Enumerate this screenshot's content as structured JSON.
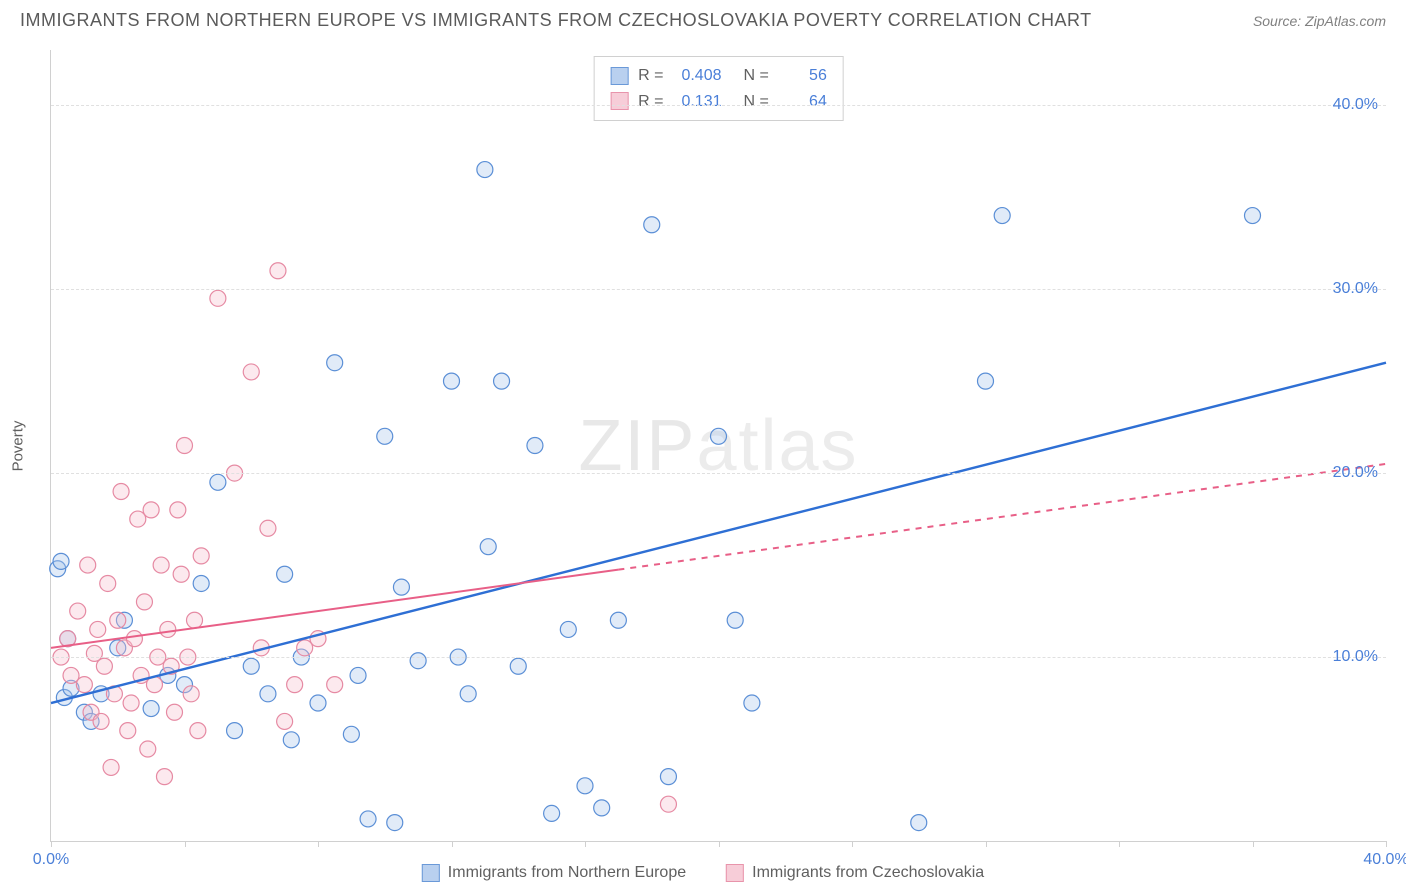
{
  "title": "IMMIGRANTS FROM NORTHERN EUROPE VS IMMIGRANTS FROM CZECHOSLOVAKIA POVERTY CORRELATION CHART",
  "source": "Source: ZipAtlas.com",
  "watermark_a": "ZIP",
  "watermark_b": "atlas",
  "y_axis_label": "Poverty",
  "chart": {
    "type": "scatter",
    "xlim": [
      0,
      40
    ],
    "ylim": [
      0,
      43
    ],
    "xtick_positions": [
      0,
      4,
      8,
      12,
      16,
      20,
      24,
      28,
      32,
      36,
      40
    ],
    "xtick_labels": {
      "0": "0.0%",
      "40": "40.0%"
    },
    "ytick_values": [
      10,
      20,
      30,
      40
    ],
    "ytick_labels": [
      "10.0%",
      "20.0%",
      "30.0%",
      "40.0%"
    ],
    "grid_color": "#e0e0e0",
    "background_color": "#ffffff",
    "axis_color": "#d0d0d0",
    "label_color": "#4a7fd8",
    "marker_radius": 8,
    "marker_stroke_width": 1.2,
    "marker_fill_opacity": 0.35,
    "series": [
      {
        "name": "Immigrants from Northern Europe",
        "color_stroke": "#5b8fd6",
        "color_fill": "#a8c6ec",
        "legend_swatch_fill": "#b9d0ef",
        "legend_swatch_border": "#6a99d8",
        "R": "0.408",
        "N": "56",
        "trend": {
          "x1": 0,
          "y1": 7.5,
          "x2": 40,
          "y2": 26.0,
          "stroke": "#2e6fd4",
          "width": 2.4,
          "dash": ""
        },
        "points": [
          [
            0.2,
            14.8
          ],
          [
            0.3,
            15.2
          ],
          [
            0.4,
            7.8
          ],
          [
            0.5,
            11.0
          ],
          [
            0.6,
            8.3
          ],
          [
            1.0,
            7.0
          ],
          [
            1.2,
            6.5
          ],
          [
            1.5,
            8.0
          ],
          [
            2.0,
            10.5
          ],
          [
            2.2,
            12.0
          ],
          [
            3.0,
            7.2
          ],
          [
            3.5,
            9.0
          ],
          [
            4.0,
            8.5
          ],
          [
            4.5,
            14.0
          ],
          [
            5.0,
            19.5
          ],
          [
            5.5,
            6.0
          ],
          [
            6.0,
            9.5
          ],
          [
            6.5,
            8.0
          ],
          [
            7.0,
            14.5
          ],
          [
            7.2,
            5.5
          ],
          [
            7.5,
            10.0
          ],
          [
            8.0,
            7.5
          ],
          [
            8.5,
            26.0
          ],
          [
            9.0,
            5.8
          ],
          [
            9.2,
            9.0
          ],
          [
            9.5,
            1.2
          ],
          [
            10.0,
            22.0
          ],
          [
            10.3,
            1.0
          ],
          [
            10.5,
            13.8
          ],
          [
            11.0,
            9.8
          ],
          [
            12.0,
            25.0
          ],
          [
            12.2,
            10.0
          ],
          [
            12.5,
            8.0
          ],
          [
            13.0,
            36.5
          ],
          [
            13.1,
            16.0
          ],
          [
            13.5,
            25.0
          ],
          [
            14.0,
            9.5
          ],
          [
            14.5,
            21.5
          ],
          [
            15.0,
            1.5
          ],
          [
            15.5,
            11.5
          ],
          [
            16.0,
            3.0
          ],
          [
            16.5,
            1.8
          ],
          [
            17.0,
            12.0
          ],
          [
            18.0,
            33.5
          ],
          [
            18.5,
            3.5
          ],
          [
            20.0,
            22.0
          ],
          [
            20.5,
            12.0
          ],
          [
            21.0,
            7.5
          ],
          [
            26.0,
            1.0
          ],
          [
            28.0,
            25.0
          ],
          [
            28.5,
            34.0
          ],
          [
            36.0,
            34.0
          ]
        ]
      },
      {
        "name": "Immigrants from Czechoslovakia",
        "color_stroke": "#e68aa3",
        "color_fill": "#f5c0cf",
        "legend_swatch_fill": "#f7cdd8",
        "legend_swatch_border": "#e894ab",
        "R": "0.131",
        "N": "64",
        "trend": {
          "x1": 0,
          "y1": 10.5,
          "x2": 40,
          "y2": 20.5,
          "stroke": "#e85f87",
          "width": 2.0,
          "dash_after_x": 17
        },
        "points": [
          [
            0.3,
            10.0
          ],
          [
            0.5,
            11.0
          ],
          [
            0.6,
            9.0
          ],
          [
            0.8,
            12.5
          ],
          [
            1.0,
            8.5
          ],
          [
            1.1,
            15.0
          ],
          [
            1.2,
            7.0
          ],
          [
            1.3,
            10.2
          ],
          [
            1.4,
            11.5
          ],
          [
            1.5,
            6.5
          ],
          [
            1.6,
            9.5
          ],
          [
            1.7,
            14.0
          ],
          [
            1.8,
            4.0
          ],
          [
            1.9,
            8.0
          ],
          [
            2.0,
            12.0
          ],
          [
            2.1,
            19.0
          ],
          [
            2.2,
            10.5
          ],
          [
            2.3,
            6.0
          ],
          [
            2.4,
            7.5
          ],
          [
            2.5,
            11.0
          ],
          [
            2.6,
            17.5
          ],
          [
            2.7,
            9.0
          ],
          [
            2.8,
            13.0
          ],
          [
            2.9,
            5.0
          ],
          [
            3.0,
            18.0
          ],
          [
            3.1,
            8.5
          ],
          [
            3.2,
            10.0
          ],
          [
            3.3,
            15.0
          ],
          [
            3.4,
            3.5
          ],
          [
            3.5,
            11.5
          ],
          [
            3.6,
            9.5
          ],
          [
            3.7,
            7.0
          ],
          [
            3.8,
            18.0
          ],
          [
            3.9,
            14.5
          ],
          [
            4.0,
            21.5
          ],
          [
            4.1,
            10.0
          ],
          [
            4.2,
            8.0
          ],
          [
            4.3,
            12.0
          ],
          [
            4.4,
            6.0
          ],
          [
            4.5,
            15.5
          ],
          [
            5.0,
            29.5
          ],
          [
            5.5,
            20.0
          ],
          [
            6.0,
            25.5
          ],
          [
            6.3,
            10.5
          ],
          [
            6.5,
            17.0
          ],
          [
            6.8,
            31.0
          ],
          [
            7.0,
            6.5
          ],
          [
            7.3,
            8.5
          ],
          [
            7.6,
            10.5
          ],
          [
            8.0,
            11.0
          ],
          [
            8.5,
            8.5
          ],
          [
            18.5,
            2.0
          ]
        ]
      }
    ]
  },
  "stats_legend": {
    "r_label": "R =",
    "n_label": "N ="
  },
  "bottom_legend_labels": [
    "Immigrants from Northern Europe",
    "Immigrants from Czechoslovakia"
  ]
}
